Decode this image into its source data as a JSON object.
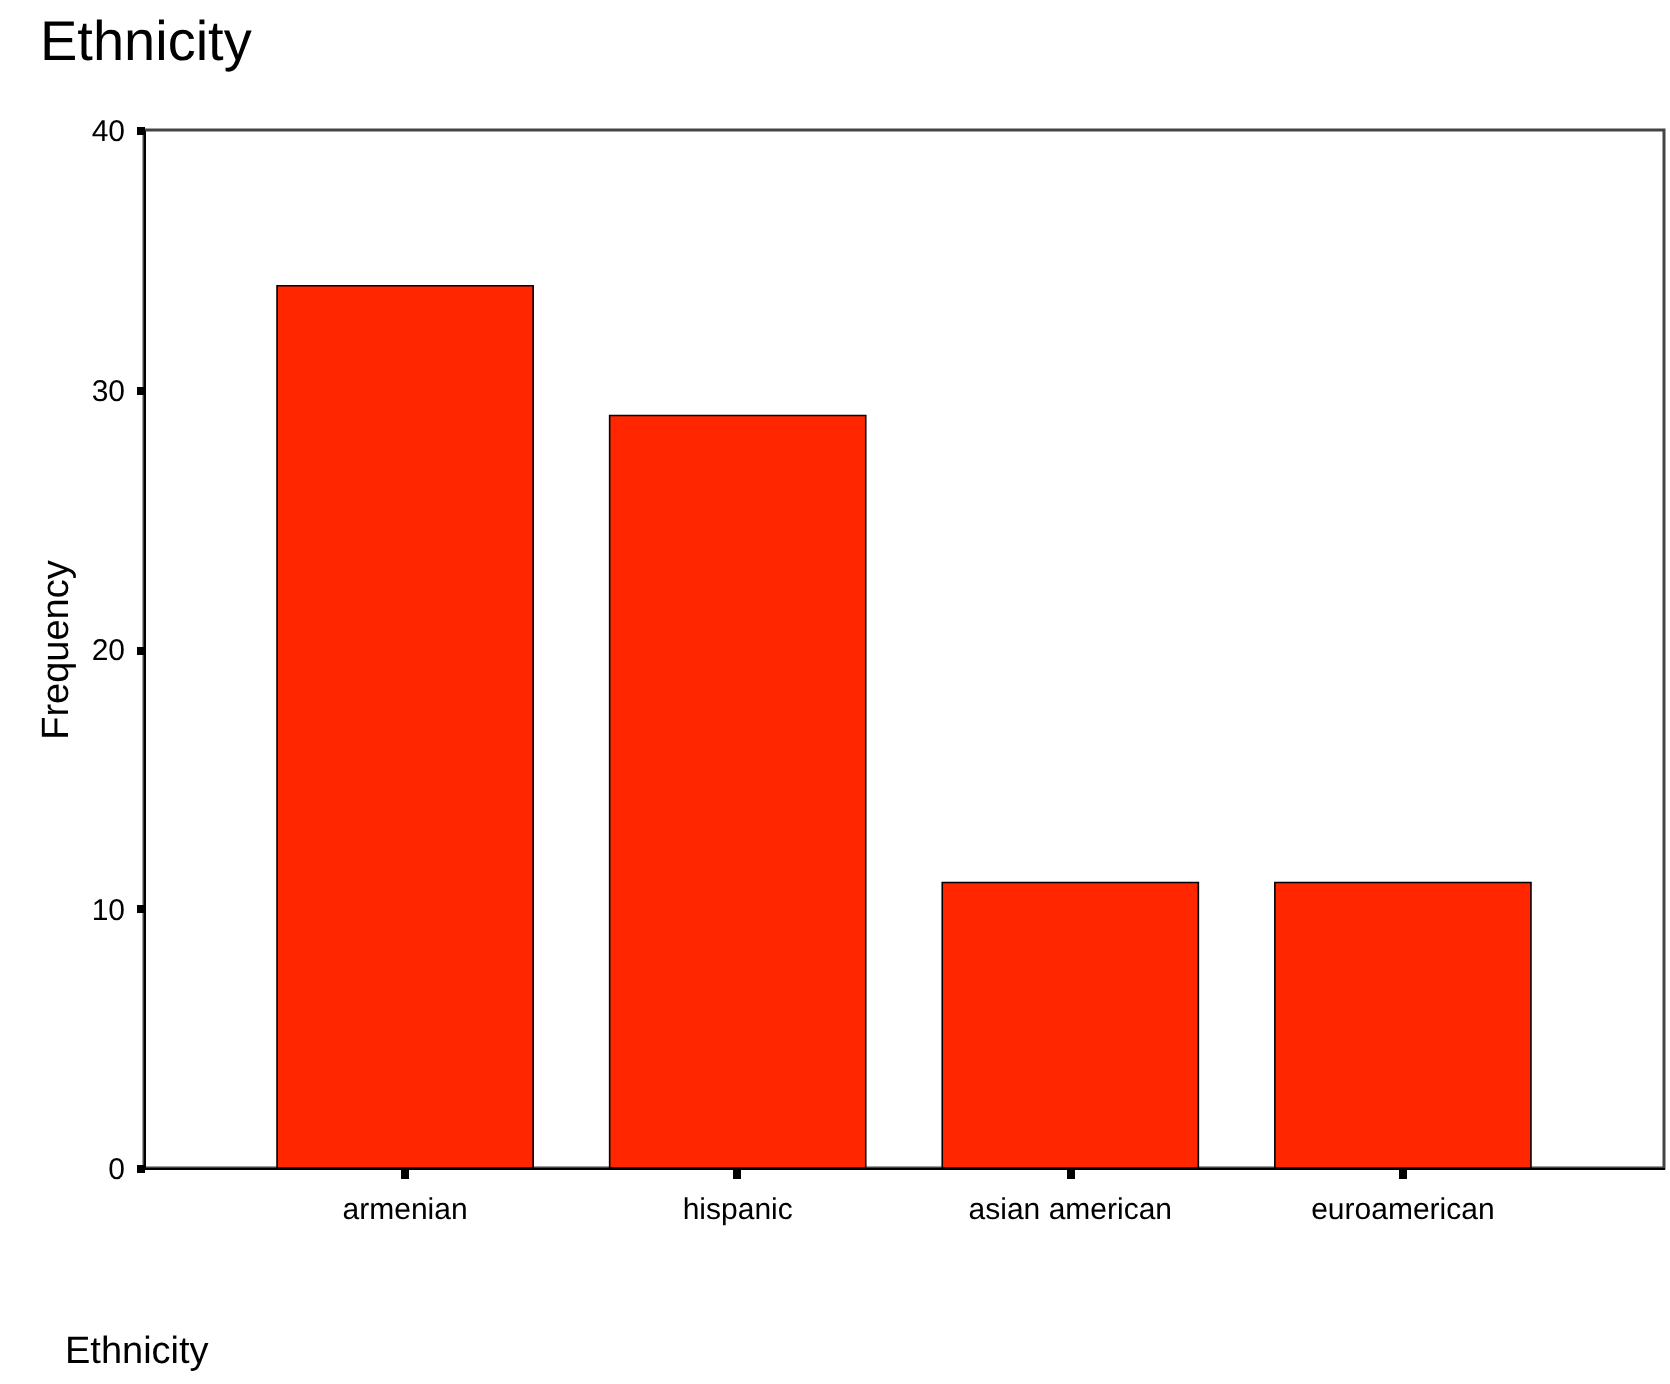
{
  "chart_data": {
    "type": "bar",
    "title": "Ethnicity",
    "xlabel": "Ethnicity",
    "ylabel": "Frequency",
    "categories": [
      "armenian",
      "hispanic",
      "asian american",
      "euroamerican"
    ],
    "values": [
      34,
      29,
      11,
      11
    ],
    "color": "#ff2600",
    "ylim": [
      0,
      40
    ],
    "yticks": [
      0,
      10,
      20,
      30,
      40
    ],
    "grid": false
  }
}
